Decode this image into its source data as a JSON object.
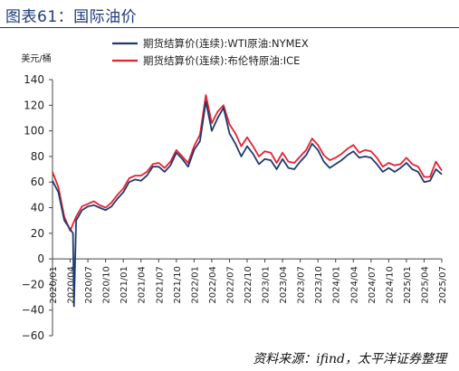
{
  "figure": {
    "title": "图表61：国际油价",
    "source": "资料来源：ifind，太平洋证券整理"
  },
  "chart_data": {
    "type": "line",
    "ylabel": "美元/桶",
    "ylim": [
      -60,
      140
    ],
    "yticks": [
      -60,
      -40,
      -20,
      0,
      20,
      40,
      60,
      80,
      100,
      120,
      140
    ],
    "x_tick_labels": [
      "2020/01",
      "2020/04",
      "2020/07",
      "2020/10",
      "2021/01",
      "2021/04",
      "2021/07",
      "2021/10",
      "2022/01",
      "2022/04",
      "2022/07",
      "2022/10",
      "2023/01",
      "2023/04",
      "2023/07",
      "2023/10",
      "2024/01",
      "2024/04",
      "2024/07",
      "2024/10",
      "2025/01",
      "2025/04",
      "2025/07"
    ],
    "series": [
      {
        "name": "期货结算价(连续):WTI原油:NYMEX",
        "color": "#1f3a6e",
        "points": [
          [
            "2020/01",
            61
          ],
          [
            "2020/02",
            52
          ],
          [
            "2020/03",
            30
          ],
          [
            "2020/04/15",
            20
          ],
          [
            "2020/04/20",
            -37
          ],
          [
            "2020/05",
            30
          ],
          [
            "2020/06",
            38
          ],
          [
            "2020/07",
            41
          ],
          [
            "2020/08",
            42
          ],
          [
            "2020/09",
            40
          ],
          [
            "2020/10",
            38
          ],
          [
            "2020/11",
            41
          ],
          [
            "2020/12",
            47
          ],
          [
            "2021/01",
            52
          ],
          [
            "2021/02",
            60
          ],
          [
            "2021/03",
            62
          ],
          [
            "2021/04",
            61
          ],
          [
            "2021/05",
            65
          ],
          [
            "2021/06",
            72
          ],
          [
            "2021/07",
            72
          ],
          [
            "2021/08",
            68
          ],
          [
            "2021/09",
            73
          ],
          [
            "2021/10",
            83
          ],
          [
            "2021/11",
            78
          ],
          [
            "2021/12",
            72
          ],
          [
            "2022/01",
            85
          ],
          [
            "2022/02",
            92
          ],
          [
            "2022/03",
            123
          ],
          [
            "2022/04",
            100
          ],
          [
            "2022/05",
            110
          ],
          [
            "2022/06",
            118
          ],
          [
            "2022/07",
            98
          ],
          [
            "2022/08",
            90
          ],
          [
            "2022/09",
            80
          ],
          [
            "2022/10",
            88
          ],
          [
            "2022/11",
            82
          ],
          [
            "2022/12",
            74
          ],
          [
            "2023/01",
            78
          ],
          [
            "2023/02",
            77
          ],
          [
            "2023/03",
            70
          ],
          [
            "2023/04",
            78
          ],
          [
            "2023/05",
            71
          ],
          [
            "2023/06",
            70
          ],
          [
            "2023/07",
            76
          ],
          [
            "2023/08",
            81
          ],
          [
            "2023/09",
            90
          ],
          [
            "2023/10",
            85
          ],
          [
            "2023/11",
            76
          ],
          [
            "2023/12",
            71
          ],
          [
            "2024/01",
            74
          ],
          [
            "2024/02",
            77
          ],
          [
            "2024/03",
            81
          ],
          [
            "2024/04",
            84
          ],
          [
            "2024/05",
            79
          ],
          [
            "2024/06",
            80
          ],
          [
            "2024/07",
            79
          ],
          [
            "2024/08",
            74
          ],
          [
            "2024/09",
            68
          ],
          [
            "2024/10",
            71
          ],
          [
            "2024/11",
            68
          ],
          [
            "2024/12",
            71
          ],
          [
            "2025/01",
            75
          ],
          [
            "2025/02",
            70
          ],
          [
            "2025/03",
            68
          ],
          [
            "2025/04",
            60
          ],
          [
            "2025/05",
            61
          ],
          [
            "2025/06",
            70
          ],
          [
            "2025/07",
            66
          ]
        ]
      },
      {
        "name": "期货结算价(连续):布伦特原油:ICE",
        "color": "#e8202f",
        "points": [
          [
            "2020/01",
            68
          ],
          [
            "2020/02",
            56
          ],
          [
            "2020/03",
            33
          ],
          [
            "2020/04",
            22
          ],
          [
            "2020/05",
            33
          ],
          [
            "2020/06",
            41
          ],
          [
            "2020/07",
            43
          ],
          [
            "2020/08",
            45
          ],
          [
            "2020/09",
            42
          ],
          [
            "2020/10",
            40
          ],
          [
            "2020/11",
            44
          ],
          [
            "2020/12",
            50
          ],
          [
            "2021/01",
            55
          ],
          [
            "2021/02",
            63
          ],
          [
            "2021/03",
            65
          ],
          [
            "2021/04",
            65
          ],
          [
            "2021/05",
            68
          ],
          [
            "2021/06",
            74
          ],
          [
            "2021/07",
            75
          ],
          [
            "2021/08",
            71
          ],
          [
            "2021/09",
            76
          ],
          [
            "2021/10",
            85
          ],
          [
            "2021/11",
            80
          ],
          [
            "2021/12",
            75
          ],
          [
            "2022/01",
            88
          ],
          [
            "2022/02",
            97
          ],
          [
            "2022/03",
            128
          ],
          [
            "2022/04",
            106
          ],
          [
            "2022/05",
            115
          ],
          [
            "2022/06",
            120
          ],
          [
            "2022/07",
            105
          ],
          [
            "2022/08",
            98
          ],
          [
            "2022/09",
            88
          ],
          [
            "2022/10",
            95
          ],
          [
            "2022/11",
            88
          ],
          [
            "2022/12",
            80
          ],
          [
            "2023/01",
            84
          ],
          [
            "2023/02",
            83
          ],
          [
            "2023/03",
            75
          ],
          [
            "2023/04",
            83
          ],
          [
            "2023/05",
            76
          ],
          [
            "2023/06",
            75
          ],
          [
            "2023/07",
            80
          ],
          [
            "2023/08",
            85
          ],
          [
            "2023/09",
            94
          ],
          [
            "2023/10",
            89
          ],
          [
            "2023/11",
            81
          ],
          [
            "2023/12",
            77
          ],
          [
            "2024/01",
            79
          ],
          [
            "2024/02",
            82
          ],
          [
            "2024/03",
            86
          ],
          [
            "2024/04",
            89
          ],
          [
            "2024/05",
            83
          ],
          [
            "2024/06",
            85
          ],
          [
            "2024/07",
            84
          ],
          [
            "2024/08",
            79
          ],
          [
            "2024/09",
            72
          ],
          [
            "2024/10",
            75
          ],
          [
            "2024/11",
            73
          ],
          [
            "2024/12",
            74
          ],
          [
            "2025/01",
            79
          ],
          [
            "2025/02",
            74
          ],
          [
            "2025/03",
            72
          ],
          [
            "2025/04",
            64
          ],
          [
            "2025/05",
            64
          ],
          [
            "2025/06",
            76
          ],
          [
            "2025/07",
            69
          ]
        ]
      }
    ],
    "grid": false,
    "legend_position": "top-center"
  }
}
